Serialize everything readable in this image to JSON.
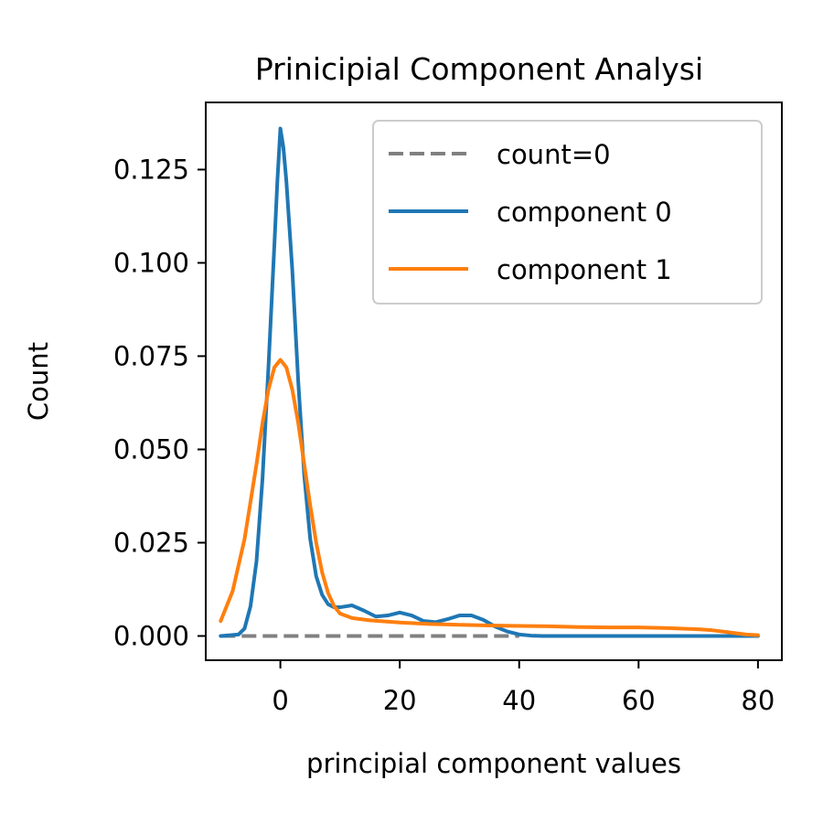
{
  "chart_data": {
    "type": "line",
    "title": "Prinicipial Component Analysi",
    "xlabel": "principial component values",
    "ylabel": "Count",
    "xlim": [
      -12.5,
      84
    ],
    "ylim": [
      -0.0065,
      0.143
    ],
    "xticks": [
      0,
      20,
      40,
      60,
      80
    ],
    "xtick_labels": [
      "0",
      "20",
      "40",
      "60",
      "80"
    ],
    "yticks": [
      0.0,
      0.025,
      0.05,
      0.075,
      0.1,
      0.125
    ],
    "ytick_labels": [
      "0.000",
      "0.025",
      "0.050",
      "0.075",
      "0.100",
      "0.125"
    ],
    "grid": false,
    "legend_position": "upper right",
    "series": [
      {
        "name": "count=0",
        "color": "#808080",
        "style": "dashed",
        "x": [
          -10,
          40
        ],
        "y": [
          0,
          0
        ]
      },
      {
        "name": "component 0",
        "color": "#1f77b4",
        "style": "solid",
        "x": [
          -10,
          -7,
          -6,
          -5,
          -4,
          -3,
          -2,
          -1,
          -0.5,
          0,
          0.5,
          1,
          2,
          3,
          4,
          5,
          6,
          7,
          8,
          9,
          10,
          12,
          14,
          16,
          18,
          20,
          22,
          24,
          26,
          28,
          30,
          32,
          34,
          36,
          38,
          40,
          42,
          44,
          50,
          60,
          70,
          80
        ],
        "y": [
          0.0,
          0.0004,
          0.002,
          0.008,
          0.02,
          0.042,
          0.072,
          0.105,
          0.122,
          0.136,
          0.131,
          0.122,
          0.098,
          0.068,
          0.043,
          0.026,
          0.016,
          0.011,
          0.0085,
          0.0077,
          0.0077,
          0.0082,
          0.0068,
          0.0052,
          0.0055,
          0.0063,
          0.0055,
          0.004,
          0.0037,
          0.0045,
          0.0055,
          0.0055,
          0.0043,
          0.0025,
          0.0012,
          0.0004,
          0.0001,
          0.0,
          0.0,
          0.0,
          0.0,
          0.0
        ]
      },
      {
        "name": "component 1",
        "color": "#ff7f0e",
        "style": "solid",
        "x": [
          -10,
          -8,
          -6,
          -4,
          -3,
          -2,
          -1,
          0,
          1,
          2,
          3,
          4,
          5,
          6,
          7,
          8,
          9,
          10,
          12,
          15,
          20,
          25,
          30,
          35,
          40,
          45,
          50,
          55,
          60,
          65,
          70,
          72,
          75,
          78,
          80
        ],
        "y": [
          0.004,
          0.012,
          0.026,
          0.046,
          0.057,
          0.066,
          0.072,
          0.074,
          0.072,
          0.066,
          0.057,
          0.046,
          0.035,
          0.025,
          0.017,
          0.0115,
          0.008,
          0.006,
          0.0048,
          0.0042,
          0.0036,
          0.0032,
          0.003,
          0.0028,
          0.0027,
          0.0026,
          0.0024,
          0.0023,
          0.0023,
          0.0021,
          0.0018,
          0.0016,
          0.001,
          0.0004,
          0.0002
        ]
      }
    ]
  }
}
